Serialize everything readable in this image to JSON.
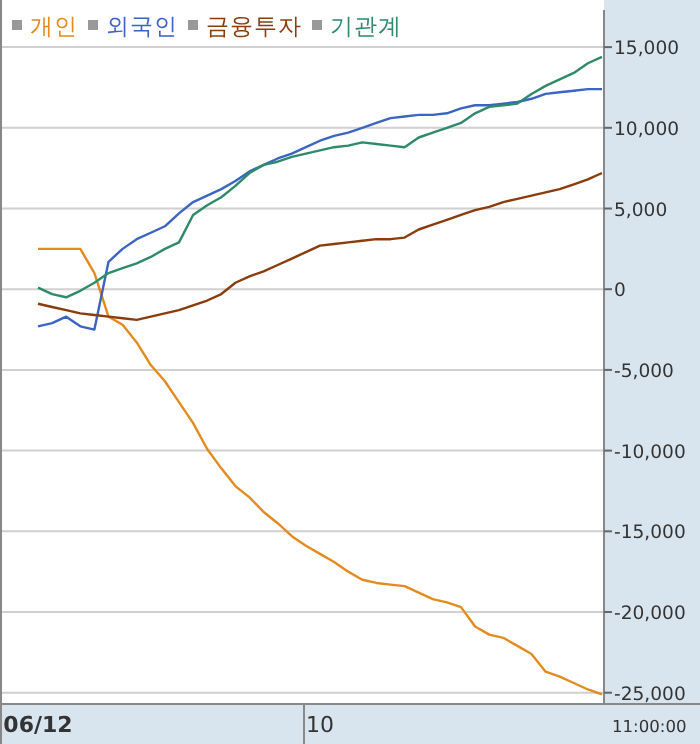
{
  "chart_data": {
    "type": "line",
    "categories": [
      "06/12",
      null,
      null,
      null,
      null,
      null,
      null,
      null,
      null,
      null,
      null,
      null,
      null,
      null,
      null,
      null,
      null,
      null,
      null,
      null,
      "10",
      null,
      null,
      null,
      null,
      null,
      null,
      null,
      null,
      null,
      null,
      null,
      null,
      null,
      null,
      null,
      null,
      null,
      null,
      null,
      null
    ],
    "series": [
      {
        "name": "개인",
        "color": "#e38b1f",
        "values": [
          2500,
          2500,
          2500,
          2500,
          1000,
          -1700,
          -2200,
          -3300,
          -4700,
          -5700,
          -7000,
          -8300,
          -9900,
          -11100,
          -12200,
          -12900,
          -13800,
          -14500,
          -15300,
          -15900,
          -16400,
          -16900,
          -17500,
          -18000,
          -18200,
          -18300,
          -18400,
          -18800,
          -19200,
          -19400,
          -19700,
          -20900,
          -21400,
          -21600,
          -22100,
          -22600,
          -23700,
          -24000,
          -24400,
          -24800,
          -25100
        ]
      },
      {
        "name": "외국인",
        "color": "#3b64c4",
        "values": [
          -2300,
          -2100,
          -1700,
          -2300,
          -2500,
          1700,
          2500,
          3100,
          3500,
          3900,
          4700,
          5400,
          5800,
          6200,
          6700,
          7300,
          7700,
          8100,
          8400,
          8800,
          9200,
          9500,
          9700,
          10000,
          10300,
          10600,
          10700,
          10800,
          10800,
          10900,
          11200,
          11400,
          11400,
          11500,
          11600,
          11800,
          12100,
          12200,
          12300,
          12400,
          12400
        ]
      },
      {
        "name": "금융투자",
        "color": "#8a3c0c",
        "values": [
          -900,
          -1100,
          -1300,
          -1500,
          -1600,
          -1700,
          -1800,
          -1900,
          -1700,
          -1500,
          -1300,
          -1000,
          -700,
          -300,
          400,
          800,
          1100,
          1500,
          1900,
          2300,
          2700,
          2800,
          2900,
          3000,
          3100,
          3100,
          3200,
          3700,
          4000,
          4300,
          4600,
          4900,
          5100,
          5400,
          5600,
          5800,
          6000,
          6200,
          6500,
          6800,
          7200
        ]
      },
      {
        "name": "기관계",
        "color": "#2f8a6a",
        "values": [
          100,
          -300,
          -500,
          -100,
          400,
          1000,
          1300,
          1600,
          2000,
          2500,
          2900,
          4600,
          5200,
          5700,
          6400,
          7200,
          7700,
          7900,
          8200,
          8400,
          8600,
          8800,
          8900,
          9100,
          9000,
          8900,
          8800,
          9400,
          9700,
          10000,
          10300,
          10900,
          11300,
          11400,
          11500,
          12100,
          12600,
          13000,
          13400,
          14000,
          14400
        ]
      }
    ],
    "ylim": [
      -25700,
      17300
    ],
    "yticks": [
      {
        "value": 15000,
        "label": "15,000"
      },
      {
        "value": 10000,
        "label": "10,000"
      },
      {
        "value": 5000,
        "label": "5,000"
      },
      {
        "value": 0,
        "label": "0"
      },
      {
        "value": -5000,
        "label": "-5,000"
      },
      {
        "value": -10000,
        "label": "-10,000"
      },
      {
        "value": -15000,
        "label": "-15,000"
      },
      {
        "value": -20000,
        "label": "-20,000"
      },
      {
        "value": -25000,
        "label": "-25,000"
      }
    ],
    "grid": "y",
    "legend": "top left",
    "marker": "none",
    "line_style": "solid",
    "annotations": [
      "11:00:00"
    ]
  }
}
